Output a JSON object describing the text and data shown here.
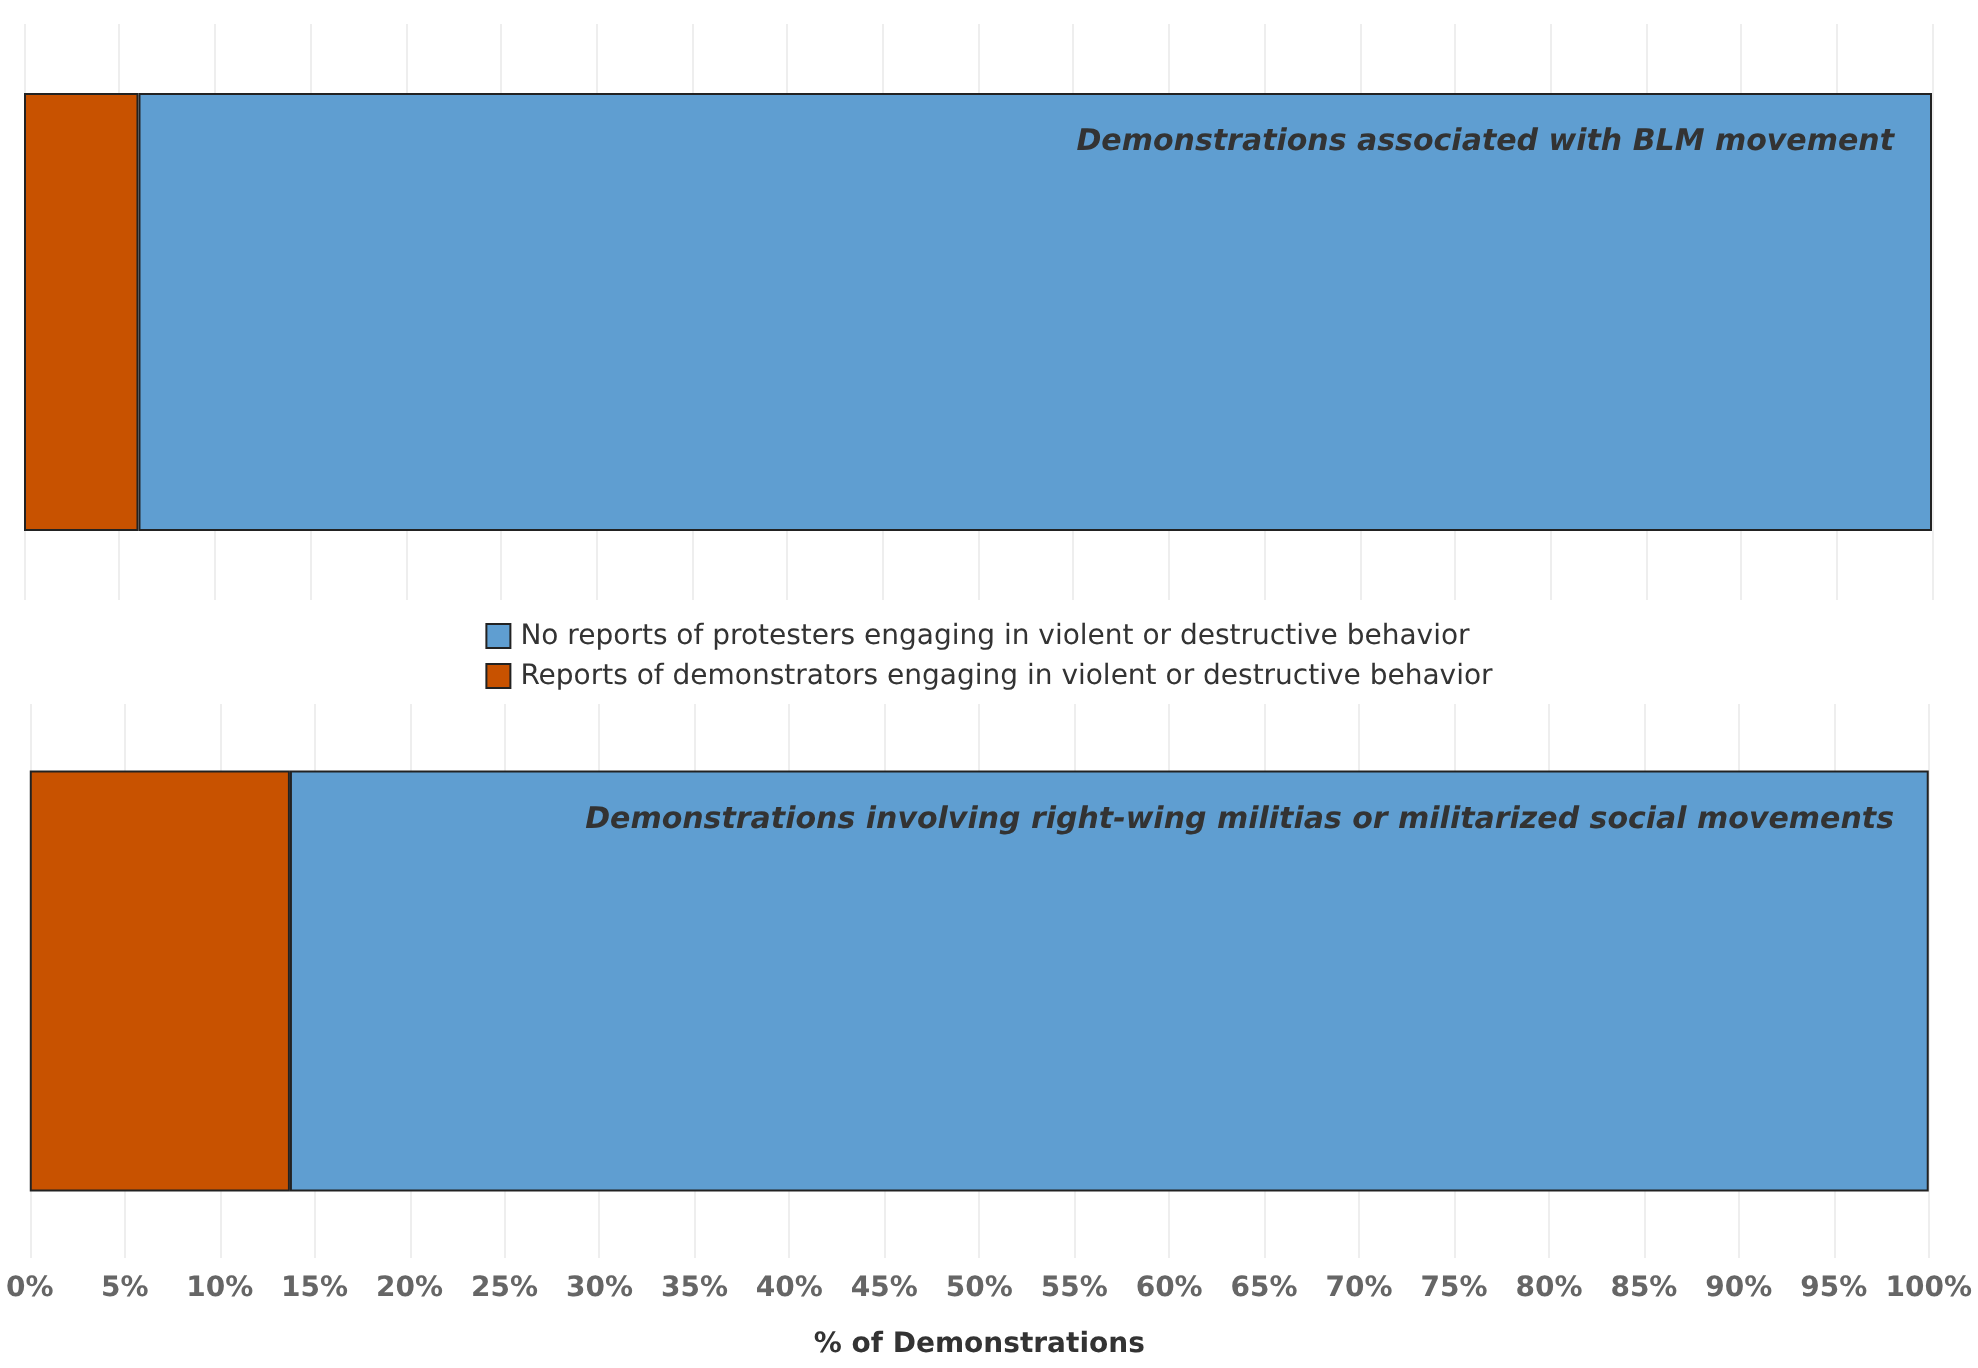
{
  "chart_data": [
    {
      "type": "bar",
      "orientation": "horizontal",
      "stacked": true,
      "categories": [
        null
      ],
      "series": [
        {
          "name": "Reports of demonstrators engaging in violent or destructive behavior",
          "color": "#c85200",
          "values": [
            6
          ]
        },
        {
          "name": "No reports of protesters engaging in violent or destructive behavior",
          "color": "#5f9ed1",
          "values": [
            94
          ]
        }
      ],
      "xlim": [
        0,
        100
      ],
      "xticks": [
        {
          "value": 0,
          "label": null
        },
        {
          "value": 5,
          "label": null
        },
        {
          "value": 10,
          "label": null
        },
        {
          "value": 15,
          "label": null
        },
        {
          "value": 20,
          "label": null
        },
        {
          "value": 25,
          "label": null
        },
        {
          "value": 30,
          "label": null
        },
        {
          "value": 35,
          "label": null
        },
        {
          "value": 40,
          "label": null
        },
        {
          "value": 45,
          "label": null
        },
        {
          "value": 50,
          "label": null
        },
        {
          "value": 55,
          "label": null
        },
        {
          "value": 60,
          "label": null
        },
        {
          "value": 65,
          "label": null
        },
        {
          "value": 70,
          "label": null
        },
        {
          "value": 75,
          "label": null
        },
        {
          "value": 80,
          "label": null
        },
        {
          "value": 85,
          "label": null
        },
        {
          "value": 90,
          "label": null
        },
        {
          "value": 95,
          "label": null
        },
        {
          "value": 100,
          "label": null
        }
      ],
      "annotations": [
        "Demonstrations associated with BLM movement"
      ],
      "grid": "x",
      "legend": "bottom",
      "tick_labels": false
    },
    {
      "type": "bar",
      "orientation": "horizontal",
      "stacked": true,
      "categories": [
        null
      ],
      "series": [
        {
          "color": "#c85200",
          "values": [
            13.7
          ]
        },
        {
          "color": "#5f9ed1",
          "values": [
            86.3
          ]
        }
      ],
      "xlim": [
        0,
        100
      ],
      "xticks": [
        {
          "value": 0,
          "label": "0%"
        },
        {
          "value": 5,
          "label": "5%"
        },
        {
          "value": 10,
          "label": "10%"
        },
        {
          "value": 15,
          "label": "15%"
        },
        {
          "value": 20,
          "label": "20%"
        },
        {
          "value": 25,
          "label": "25%"
        },
        {
          "value": 30,
          "label": "30%"
        },
        {
          "value": 35,
          "label": "35%"
        },
        {
          "value": 40,
          "label": "40%"
        },
        {
          "value": 45,
          "label": "45%"
        },
        {
          "value": 50,
          "label": "50%"
        },
        {
          "value": 55,
          "label": "55%"
        },
        {
          "value": 60,
          "label": "60%"
        },
        {
          "value": 65,
          "label": "65%"
        },
        {
          "value": 70,
          "label": "70%"
        },
        {
          "value": 75,
          "label": "75%"
        },
        {
          "value": 80,
          "label": "80%"
        },
        {
          "value": 85,
          "label": "85%"
        },
        {
          "value": 90,
          "label": "90%"
        },
        {
          "value": 95,
          "label": "95%"
        },
        {
          "value": 100,
          "label": "100%"
        }
      ],
      "xlabel": "% of Demonstrations",
      "annotations": [
        "Demonstrations involving right-wing militias or militarized social movements"
      ],
      "grid": "x",
      "tick_labels": "x"
    }
  ]
}
